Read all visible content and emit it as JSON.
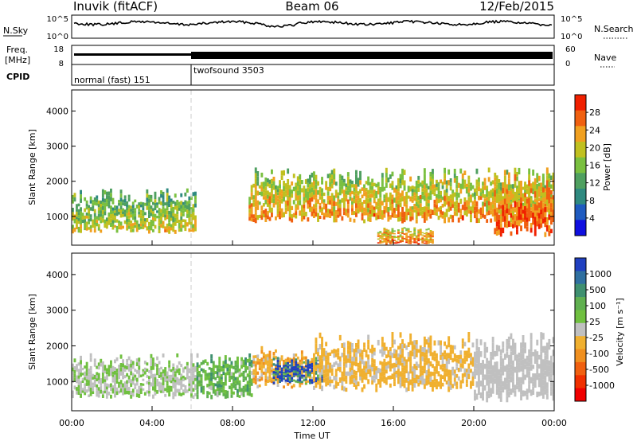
{
  "header": {
    "station": "Inuvik (fitACF)",
    "beam": "Beam 06",
    "date": "12/Feb/2015"
  },
  "noise_panel": {
    "left_label": "N.Sky",
    "right_label": "N.Search",
    "left_ticks": [
      "10^5",
      "10^0"
    ],
    "right_ticks": [
      "10^5",
      "10^0"
    ]
  },
  "freq_panel": {
    "left_label_1": "Freq.",
    "left_label_2": "[MHz]",
    "right_label": "Nave",
    "left_ticks": [
      "18",
      "8"
    ],
    "right_ticks": [
      "60",
      "0"
    ]
  },
  "cpid_panel": {
    "label": "CPID",
    "modes": [
      {
        "name": "normal (fast) 151",
        "start_hour": 0
      },
      {
        "name": "twofsound 3503",
        "start_hour": 6
      }
    ]
  },
  "chart_data": [
    {
      "type": "heatmap",
      "parameter": "Power",
      "ylabel": "Slant Range [km]",
      "ylim": [
        180,
        4600
      ],
      "yticks": [
        "4000",
        "3000",
        "2000",
        "1000"
      ],
      "xlim": [
        0,
        24
      ],
      "colorbar": {
        "label": "Power [dB]",
        "range": [
          0,
          32
        ],
        "ticks": [
          "28",
          "24",
          "20",
          "16",
          "12",
          "8",
          "4"
        ],
        "colors": [
          "#1010e0",
          "#1f5bc0",
          "#2f8a80",
          "#4fa060",
          "#7ac040",
          "#c0c020",
          "#f0a020",
          "#f06010",
          "#f02000"
        ]
      },
      "echo_regions": [
        {
          "t0": 0,
          "t1": 6.2,
          "r0": 500,
          "r1": 1800,
          "v": 18
        },
        {
          "t0": 8.8,
          "t1": 24,
          "r0": 800,
          "r1": 2400,
          "v": 22
        },
        {
          "t0": 15.2,
          "t1": 18,
          "r0": 180,
          "r1": 700,
          "v": 24
        },
        {
          "t0": 21,
          "t1": 24,
          "r0": 400,
          "r1": 2400,
          "v": 26
        }
      ]
    },
    {
      "type": "heatmap",
      "parameter": "Velocity",
      "ylabel": "Slant Range [km]",
      "xlabel": "Time UT",
      "ylim": [
        180,
        4600
      ],
      "yticks": [
        "4000",
        "3000",
        "2000",
        "1000"
      ],
      "xlim": [
        0,
        24
      ],
      "xticks": [
        "00:00",
        "04:00",
        "08:00",
        "12:00",
        "16:00",
        "20:00",
        "00:00"
      ],
      "colorbar": {
        "label": "Velocity [m s⁻¹]",
        "range": [
          -1000,
          1000
        ],
        "ticks": [
          "1000",
          "500",
          "100",
          "25",
          "-25",
          "-100",
          "-500",
          "-1000"
        ],
        "colors": [
          "#2040c0",
          "#3070a0",
          "#3f9070",
          "#60b050",
          "#70c040",
          "#c0c0c0",
          "#f0b030",
          "#f09020",
          "#f06010",
          "#f03000",
          "#f00000"
        ]
      },
      "echo_regions": [
        {
          "t0": 0,
          "t1": 6.2,
          "r0": 500,
          "r1": 1800,
          "v": 80
        },
        {
          "t0": 6.2,
          "t1": 9,
          "r0": 500,
          "r1": 1800,
          "v": 300
        },
        {
          "t0": 9,
          "t1": 12,
          "r0": 800,
          "r1": 2000,
          "v": -200
        },
        {
          "t0": 10,
          "t1": 12.5,
          "r0": 900,
          "r1": 1700,
          "v": 800
        },
        {
          "t0": 12,
          "t1": 20,
          "r0": 700,
          "r1": 2400,
          "v": -150
        },
        {
          "t0": 20,
          "t1": 24,
          "r0": 400,
          "r1": 2400,
          "v": 40
        }
      ]
    }
  ]
}
